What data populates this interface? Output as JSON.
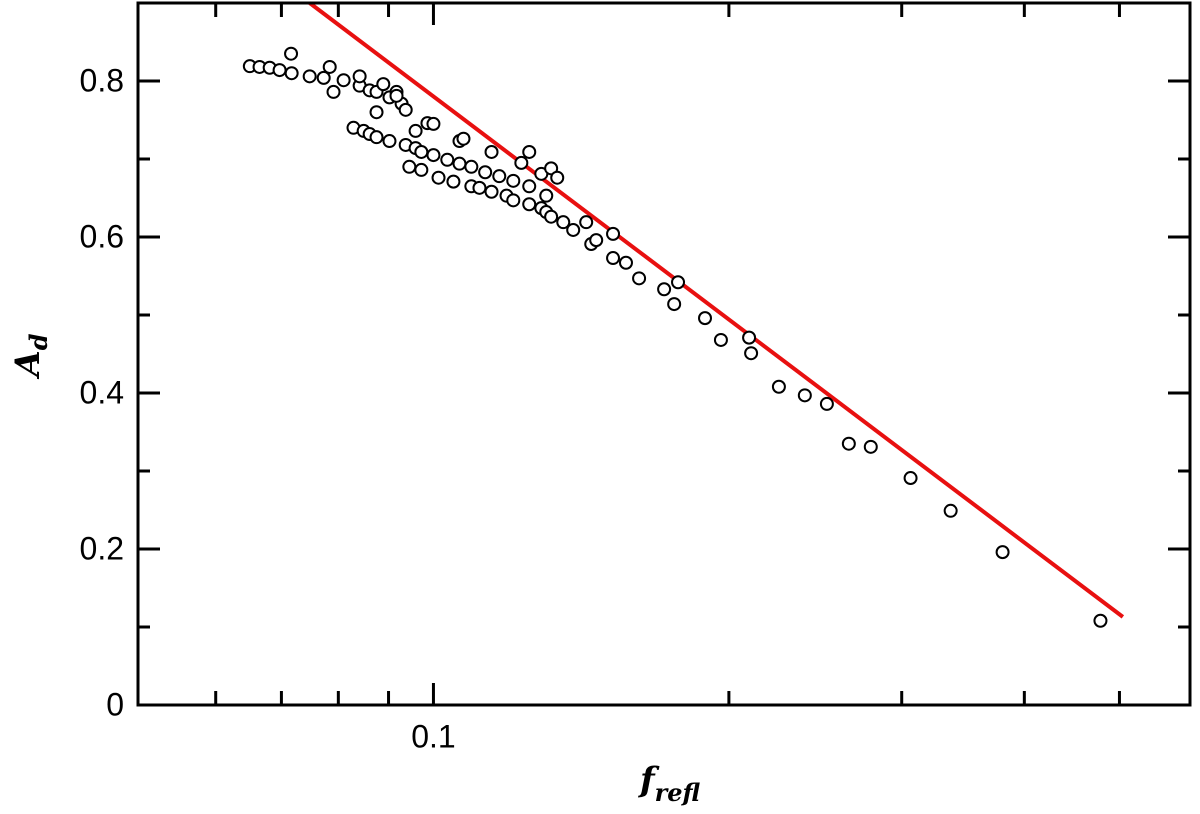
{
  "chart_data": {
    "type": "scatter",
    "xlabel": "f",
    "xlabel_sub": "refl",
    "ylabel": "A",
    "ylabel_sub": "d",
    "xscale": "log",
    "xlim": [
      0.05,
      0.59
    ],
    "ylim": [
      0,
      0.9
    ],
    "xticks": [
      0.1
    ],
    "xminorticks": [
      0.06,
      0.07,
      0.08,
      0.09,
      0.2,
      0.3,
      0.4,
      0.5
    ],
    "yticks": [
      0,
      0.2,
      0.4,
      0.6,
      0.8
    ],
    "yminorticks": [
      0.1,
      0.3,
      0.5,
      0.7
    ],
    "marker_fill": "#ffffff",
    "marker_edge": "#000000",
    "x": [
      0.065,
      0.0665,
      0.0681,
      0.0697,
      0.0717,
      0.0716,
      0.0748,
      0.0773,
      0.0784,
      0.0791,
      0.081,
      0.0841,
      0.0841,
      0.0861,
      0.0875,
      0.0889,
      0.0902,
      0.0917,
      0.0928,
      0.0875,
      0.0937,
      0.0917,
      0.0829,
      0.0849,
      0.0861,
      0.0875,
      0.0902,
      0.0937,
      0.0959,
      0.0972,
      0.1,
      0.1033,
      0.1063,
      0.1093,
      0.1129,
      0.1167,
      0.1206,
      0.1252,
      0.1303,
      0.0959,
      0.0986,
      0.1,
      0.1063,
      0.1073,
      0.1146,
      0.1252,
      0.1229,
      0.1288,
      0.1318,
      0.1337,
      0.0945,
      0.0972,
      0.1012,
      0.1048,
      0.1093,
      0.1114,
      0.1146,
      0.1187,
      0.1206,
      0.1252,
      0.1288,
      0.1303,
      0.1318,
      0.1356,
      0.1388,
      0.1431,
      0.1448,
      0.1465,
      0.1524,
      0.1524,
      0.1571,
      0.162,
      0.1718,
      0.1759,
      0.1775,
      0.1891,
      0.1963,
      0.2097,
      0.2107,
      0.2249,
      0.239,
      0.2517,
      0.265,
      0.279,
      0.3063,
      0.3365,
      0.3801,
      0.4782
    ],
    "values": [
      0.819,
      0.818,
      0.817,
      0.814,
      0.81,
      0.835,
      0.806,
      0.804,
      0.818,
      0.786,
      0.801,
      0.794,
      0.806,
      0.788,
      0.786,
      0.796,
      0.779,
      0.786,
      0.771,
      0.76,
      0.763,
      0.781,
      0.74,
      0.736,
      0.732,
      0.728,
      0.723,
      0.718,
      0.714,
      0.709,
      0.705,
      0.699,
      0.694,
      0.69,
      0.683,
      0.678,
      0.672,
      0.665,
      0.653,
      0.736,
      0.746,
      0.745,
      0.723,
      0.726,
      0.709,
      0.709,
      0.695,
      0.681,
      0.688,
      0.676,
      0.69,
      0.686,
      0.676,
      0.671,
      0.665,
      0.663,
      0.658,
      0.653,
      0.647,
      0.642,
      0.637,
      0.632,
      0.626,
      0.619,
      0.609,
      0.619,
      0.591,
      0.596,
      0.604,
      0.573,
      0.567,
      0.547,
      0.533,
      0.514,
      0.542,
      0.496,
      0.468,
      0.471,
      0.451,
      0.408,
      0.397,
      0.386,
      0.335,
      0.331,
      0.291,
      0.249,
      0.196,
      0.108
    ],
    "fit": {
      "x": [
        0.0748,
        0.504
      ],
      "values": [
        0.9,
        0.113
      ],
      "color": "#e81010"
    }
  }
}
